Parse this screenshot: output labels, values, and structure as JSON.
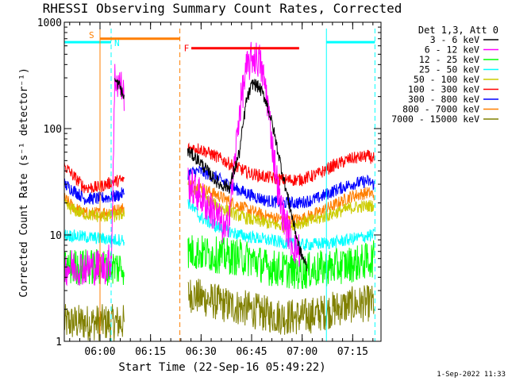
{
  "chart_data": {
    "type": "line",
    "title": "RHESSI Observing Summary Count Rates, Corrected",
    "xlabel": "Start Time (22-Sep-16 05:49:22)",
    "ylabel": "Corrected Count Rate (s⁻¹ detector⁻¹)",
    "yscale": "log",
    "ylim": [
      1,
      1000
    ],
    "xlim_minutes": [
      0,
      94
    ],
    "x_ticks": [
      {
        "label": "06:00",
        "t": 10.6
      },
      {
        "label": "06:15",
        "t": 25.6
      },
      {
        "label": "06:30",
        "t": 40.6
      },
      {
        "label": "06:45",
        "t": 55.6
      },
      {
        "label": "07:00",
        "t": 70.6
      },
      {
        "label": "07:15",
        "t": 85.6
      }
    ],
    "y_ticks": [
      {
        "label": "1",
        "v": 1
      },
      {
        "label": "10",
        "v": 10
      },
      {
        "label": "100",
        "v": 100
      },
      {
        "label": "1000",
        "v": 1000
      }
    ],
    "legend_header": "Det 1,3, Att 0",
    "series": [
      {
        "name": "3 - 6 keV",
        "color": "#000000",
        "points": [
          [
            15.0,
            280
          ],
          [
            16.5,
            250
          ],
          [
            17.5,
            200
          ],
          [
            37.0,
            60
          ],
          [
            40.0,
            50
          ],
          [
            43.0,
            38
          ],
          [
            46.0,
            30
          ],
          [
            49.0,
            28
          ],
          [
            52.0,
            60
          ],
          [
            54.0,
            180
          ],
          [
            56.0,
            270
          ],
          [
            58.0,
            240
          ],
          [
            60.0,
            180
          ],
          [
            62.0,
            100
          ],
          [
            64.0,
            50
          ],
          [
            66.0,
            25
          ],
          [
            68.0,
            13
          ],
          [
            70.0,
            7
          ],
          [
            72.0,
            5
          ]
        ]
      },
      {
        "name": "6 - 12 keV",
        "color": "#ff00ff",
        "points": [
          [
            0.0,
            5
          ],
          [
            12.0,
            5
          ],
          [
            14.0,
            6
          ],
          [
            15.0,
            300
          ],
          [
            16.5,
            260
          ],
          [
            17.5,
            220
          ],
          [
            37.0,
            30
          ],
          [
            40.0,
            24
          ],
          [
            43.0,
            18
          ],
          [
            46.0,
            14
          ],
          [
            48.0,
            10
          ],
          [
            50.0,
            30
          ],
          [
            52.0,
            150
          ],
          [
            54.0,
            350
          ],
          [
            56.0,
            480
          ],
          [
            58.0,
            430
          ],
          [
            60.0,
            220
          ],
          [
            62.0,
            60
          ],
          [
            64.0,
            20
          ],
          [
            66.0,
            12
          ],
          [
            68.0,
            8
          ],
          [
            70.0,
            7
          ]
        ]
      },
      {
        "name": "12 - 25 keV",
        "color": "#00ff00",
        "points": [
          [
            0.0,
            5
          ],
          [
            15.0,
            5
          ],
          [
            18.0,
            5
          ],
          [
            37.0,
            7
          ],
          [
            45.0,
            6.5
          ],
          [
            55.0,
            6
          ],
          [
            60.0,
            5
          ],
          [
            70.0,
            4.5
          ],
          [
            80.0,
            5
          ],
          [
            88.0,
            5.5
          ],
          [
            92.0,
            6
          ]
        ]
      },
      {
        "name": "25 - 50 keV",
        "color": "#00ffff",
        "points": [
          [
            0.0,
            10
          ],
          [
            15.0,
            9
          ],
          [
            18.0,
            9
          ],
          [
            37.0,
            20
          ],
          [
            40.0,
            15
          ],
          [
            45.0,
            12
          ],
          [
            52.0,
            10
          ],
          [
            60.0,
            9
          ],
          [
            70.0,
            8
          ],
          [
            80.0,
            8.5
          ],
          [
            88.0,
            9.5
          ],
          [
            92.0,
            10
          ]
        ]
      },
      {
        "name": "50 - 100 keV",
        "color": "#cccc00",
        "points": [
          [
            0.0,
            19
          ],
          [
            5.0,
            16
          ],
          [
            10.0,
            15
          ],
          [
            15.0,
            15
          ],
          [
            18.0,
            16
          ],
          [
            37.0,
            28
          ],
          [
            40.0,
            24
          ],
          [
            45.0,
            19
          ],
          [
            50.0,
            16
          ],
          [
            55.0,
            14
          ],
          [
            60.0,
            13
          ],
          [
            65.0,
            12
          ],
          [
            70.0,
            13
          ],
          [
            75.0,
            14
          ],
          [
            80.0,
            16
          ],
          [
            85.0,
            18
          ],
          [
            92.0,
            19
          ]
        ]
      },
      {
        "name": "100 - 300 keV",
        "color": "#ff0000",
        "points": [
          [
            0.0,
            45
          ],
          [
            3.0,
            35
          ],
          [
            6.0,
            28
          ],
          [
            10.0,
            28
          ],
          [
            15.0,
            32
          ],
          [
            18.0,
            33
          ],
          [
            37.0,
            65
          ],
          [
            40.0,
            65
          ],
          [
            45.0,
            55
          ],
          [
            50.0,
            45
          ],
          [
            55.0,
            38
          ],
          [
            60.0,
            35
          ],
          [
            65.0,
            33
          ],
          [
            70.0,
            33
          ],
          [
            75.0,
            37
          ],
          [
            80.0,
            45
          ],
          [
            85.0,
            52
          ],
          [
            90.0,
            55
          ],
          [
            92.0,
            52
          ]
        ]
      },
      {
        "name": "300 - 800 keV",
        "color": "#0000ff",
        "points": [
          [
            0.0,
            30
          ],
          [
            3.0,
            26
          ],
          [
            6.0,
            22
          ],
          [
            10.0,
            22
          ],
          [
            15.0,
            23
          ],
          [
            18.0,
            25
          ],
          [
            37.0,
            38
          ],
          [
            40.0,
            40
          ],
          [
            45.0,
            35
          ],
          [
            50.0,
            28
          ],
          [
            55.0,
            24
          ],
          [
            60.0,
            21
          ],
          [
            65.0,
            20
          ],
          [
            70.0,
            20
          ],
          [
            75.0,
            22
          ],
          [
            80.0,
            26
          ],
          [
            85.0,
            30
          ],
          [
            90.0,
            32
          ],
          [
            92.0,
            30
          ]
        ]
      },
      {
        "name": "800 - 7000 keV",
        "color": "#ff7f00",
        "points": [
          [
            0.0,
            22
          ],
          [
            3.0,
            18
          ],
          [
            6.0,
            16
          ],
          [
            10.0,
            16
          ],
          [
            15.0,
            17
          ],
          [
            18.0,
            18
          ],
          [
            37.0,
            30
          ],
          [
            40.0,
            28
          ],
          [
            45.0,
            24
          ],
          [
            50.0,
            20
          ],
          [
            55.0,
            17
          ],
          [
            60.0,
            15
          ],
          [
            65.0,
            14
          ],
          [
            70.0,
            14
          ],
          [
            75.0,
            16
          ],
          [
            80.0,
            19
          ],
          [
            85.0,
            23
          ],
          [
            90.0,
            25
          ],
          [
            92.0,
            24
          ]
        ]
      },
      {
        "name": "7000 - 15000 keV",
        "color": "#808000",
        "points": [
          [
            0.0,
            1.5
          ],
          [
            5.0,
            1.5
          ],
          [
            10.0,
            1.5
          ],
          [
            15.0,
            1.5
          ],
          [
            18.0,
            1.5
          ],
          [
            37.0,
            2.8
          ],
          [
            42.0,
            2.5
          ],
          [
            48.0,
            2.2
          ],
          [
            55.0,
            2.0
          ],
          [
            60.0,
            1.8
          ],
          [
            65.0,
            1.7
          ],
          [
            70.0,
            1.7
          ],
          [
            75.0,
            1.8
          ],
          [
            80.0,
            2.0
          ],
          [
            85.0,
            2.2
          ],
          [
            92.0,
            2.3
          ]
        ]
      }
    ],
    "annotations": [
      {
        "label": "S",
        "color": "#ff7f00",
        "t": 10.6,
        "t_end": 34.3,
        "level": 700
      },
      {
        "label": "N",
        "color": "#00ffff",
        "t": 13.9,
        "level": 650
      },
      {
        "label": "F",
        "color": "#ff0000",
        "t": 34.3,
        "t_start": 37.7,
        "t_end": 69.7,
        "level": 570
      }
    ],
    "night_bars": {
      "color": "#00ffff",
      "level": 650,
      "ranges": [
        [
          0,
          13.9
        ],
        [
          77.8,
          92.2
        ]
      ]
    },
    "saa_markers": {
      "color": "#ff7f00",
      "solid_at": 10.6,
      "dashed_at": 34.3
    },
    "night_markers": {
      "color": "#00ffff",
      "at": [
        13.9,
        77.8,
        92.2
      ]
    },
    "data_gap": [
      17.8,
      36.6
    ],
    "timestamp": "1-Sep-2022 11:33"
  }
}
